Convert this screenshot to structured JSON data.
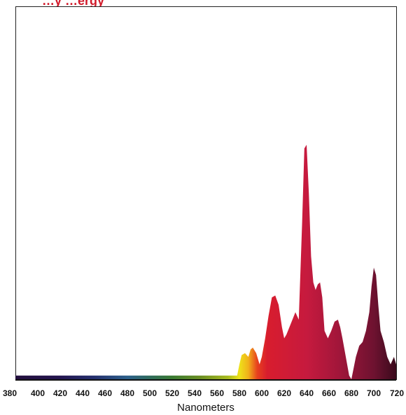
{
  "chart_data": {
    "type": "area",
    "title": "…y …ergy",
    "xlabel": "Nanometers",
    "ylabel": "",
    "xlim": [
      380,
      720
    ],
    "ylim": [
      0,
      1
    ],
    "x_ticks": [
      380,
      400,
      420,
      440,
      460,
      480,
      500,
      520,
      540,
      560,
      580,
      600,
      620,
      640,
      660,
      680,
      700,
      720
    ],
    "grid": false,
    "legend": "none",
    "series": [
      {
        "x": [
          380,
          578,
          580,
          582,
          585,
          588,
          590,
          592,
          595,
          598,
          600,
          603,
          606,
          609,
          612,
          615,
          618,
          620,
          622,
          626,
          630,
          633,
          636,
          638,
          640,
          642,
          644,
          646,
          648,
          650,
          652,
          654,
          656,
          659,
          662,
          665,
          668,
          670,
          672,
          675,
          678,
          680,
          682,
          684,
          687,
          690,
          693,
          696,
          698,
          700,
          702,
          704,
          706,
          709,
          712,
          715,
          718,
          720
        ],
        "values": [
          0.01,
          0.01,
          0.04,
          0.065,
          0.07,
          0.06,
          0.08,
          0.085,
          0.07,
          0.04,
          0.06,
          0.11,
          0.17,
          0.22,
          0.225,
          0.2,
          0.14,
          0.11,
          0.12,
          0.15,
          0.18,
          0.16,
          0.42,
          0.62,
          0.63,
          0.5,
          0.33,
          0.26,
          0.24,
          0.255,
          0.26,
          0.22,
          0.13,
          0.11,
          0.13,
          0.155,
          0.16,
          0.14,
          0.11,
          0.06,
          0.01,
          0.0,
          0.03,
          0.06,
          0.09,
          0.1,
          0.13,
          0.18,
          0.25,
          0.3,
          0.28,
          0.2,
          0.13,
          0.1,
          0.06,
          0.04,
          0.06,
          0.04
        ]
      }
    ],
    "spectrum_colors": [
      {
        "nm": 380,
        "color": "#23103d"
      },
      {
        "nm": 420,
        "color": "#241650"
      },
      {
        "nm": 450,
        "color": "#25306e"
      },
      {
        "nm": 480,
        "color": "#2c5f8a"
      },
      {
        "nm": 500,
        "color": "#2f6b5c"
      },
      {
        "nm": 520,
        "color": "#3a7a32"
      },
      {
        "nm": 545,
        "color": "#6a8e22"
      },
      {
        "nm": 570,
        "color": "#a9bb1e"
      },
      {
        "nm": 580,
        "color": "#eee21a"
      },
      {
        "nm": 588,
        "color": "#f1b01a"
      },
      {
        "nm": 596,
        "color": "#e7401e"
      },
      {
        "nm": 605,
        "color": "#d81d2e"
      },
      {
        "nm": 640,
        "color": "#c61a3e"
      },
      {
        "nm": 670,
        "color": "#a0163a"
      },
      {
        "nm": 700,
        "color": "#6e1230"
      },
      {
        "nm": 720,
        "color": "#3a0a1c"
      }
    ]
  }
}
